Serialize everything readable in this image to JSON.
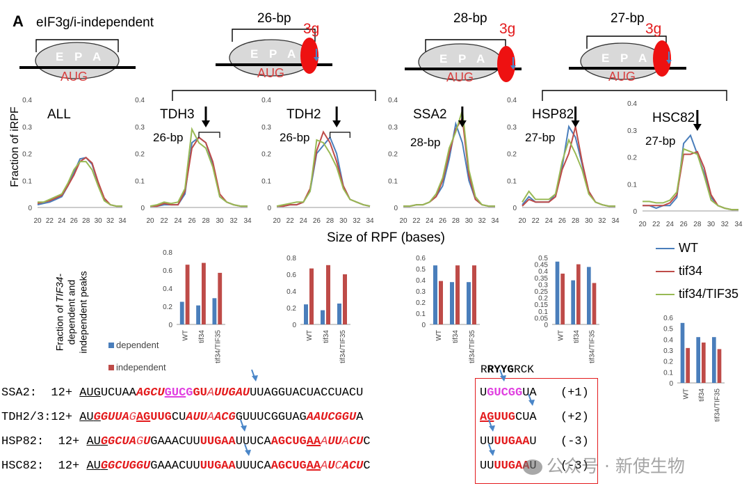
{
  "panel_letter": "A",
  "schematics": [
    {
      "label": "eIF3g/i-independent",
      "sites": [
        "E",
        "P",
        "A"
      ],
      "codon": "AUG",
      "factor": ""
    },
    {
      "label": "26-bp",
      "sites": [
        "E",
        "P",
        "A"
      ],
      "codon": "AUG",
      "factor": "3g"
    },
    {
      "label": "28-bp",
      "sites": [
        "E",
        "P",
        "A"
      ],
      "codon": "AUG",
      "factor": "3g"
    },
    {
      "label": "27-bp",
      "sites": [
        "E",
        "P",
        "A"
      ],
      "codon": "AUG",
      "factor": "3g"
    }
  ],
  "colors": {
    "WT": "#4a7ebb",
    "tif34": "#be4b48",
    "tif34_TIF35": "#98b954",
    "red": "#e31a1c",
    "magenta": "#e040e0",
    "arrow": "#4a86c8"
  },
  "legend": {
    "wt": "WT",
    "tif34": "tif34",
    "tif34_tif35": "tif34/TIF35"
  },
  "xaxis_label": "Size of RPF (bases)",
  "yaxis_label": "Fraction of iRPF",
  "bar_ylabel": {
    "line1": "Fraction of ",
    "line1_italic": "TIF34",
    "line1_end": "-",
    "line2": "dependent and",
    "line3": "independent peaks"
  },
  "bar_legend": {
    "dependent": "dependent",
    "independent": "independent"
  },
  "chart_data": [
    {
      "type": "line",
      "name": "ALL",
      "title": "ALL",
      "x": [
        20,
        21,
        22,
        23,
        24,
        25,
        26,
        27,
        28,
        29,
        30,
        31,
        32,
        33,
        34
      ],
      "ylim": [
        0,
        0.4
      ],
      "yticks": [
        "0",
        "0.1",
        "0.2",
        "0.3",
        "0.4"
      ],
      "xticks": [
        "20",
        "22",
        "24",
        "26",
        "28",
        "30",
        "32",
        "34"
      ],
      "annotation": "",
      "series": [
        {
          "name": "WT",
          "values": [
            0.01,
            0.015,
            0.02,
            0.03,
            0.04,
            0.08,
            0.13,
            0.18,
            0.185,
            0.16,
            0.09,
            0.03,
            0.01,
            0.005,
            0.005
          ]
        },
        {
          "name": "tif34",
          "values": [
            0.015,
            0.02,
            0.025,
            0.035,
            0.045,
            0.08,
            0.12,
            0.17,
            0.185,
            0.165,
            0.095,
            0.035,
            0.01,
            0.005,
            0.005
          ]
        },
        {
          "name": "tif34/TIF35",
          "values": [
            0.02,
            0.02,
            0.03,
            0.04,
            0.05,
            0.09,
            0.14,
            0.17,
            0.17,
            0.14,
            0.08,
            0.025,
            0.01,
            0.005,
            0.005
          ]
        }
      ]
    },
    {
      "type": "line",
      "name": "TDH3",
      "title": "TDH3",
      "x": [
        20,
        21,
        22,
        23,
        24,
        25,
        26,
        27,
        28,
        29,
        30,
        31,
        32,
        33,
        34
      ],
      "ylim": [
        0,
        0.4
      ],
      "yticks": [
        "0",
        "0.1",
        "0.2",
        "0.3",
        "0.4"
      ],
      "xticks": [
        "20",
        "22",
        "24",
        "26",
        "28",
        "30",
        "32",
        "34"
      ],
      "annotation": "26-bp",
      "series": [
        {
          "name": "WT",
          "values": [
            0.005,
            0.005,
            0.01,
            0.01,
            0.01,
            0.05,
            0.24,
            0.26,
            0.24,
            0.16,
            0.04,
            0.02,
            0.01,
            0.005,
            0.005
          ]
        },
        {
          "name": "tif34",
          "values": [
            0.005,
            0.005,
            0.015,
            0.01,
            0.01,
            0.06,
            0.22,
            0.26,
            0.24,
            0.17,
            0.05,
            0.02,
            0.01,
            0.005,
            0.005
          ]
        },
        {
          "name": "tif34/TIF35",
          "values": [
            0.005,
            0.01,
            0.02,
            0.015,
            0.02,
            0.07,
            0.29,
            0.24,
            0.22,
            0.15,
            0.04,
            0.02,
            0.01,
            0.005,
            0.005
          ]
        }
      ]
    },
    {
      "type": "line",
      "name": "TDH2",
      "title": "TDH2",
      "x": [
        20,
        21,
        22,
        23,
        24,
        25,
        26,
        27,
        28,
        29,
        30,
        31,
        32,
        33,
        34
      ],
      "ylim": [
        0,
        0.4
      ],
      "yticks": [
        "0",
        "0.1",
        "0.2",
        "0.3",
        "0.4"
      ],
      "xticks": [
        "20",
        "22",
        "24",
        "26",
        "28",
        "30",
        "32",
        "34"
      ],
      "annotation": "26-bp",
      "series": [
        {
          "name": "WT",
          "values": [
            0.005,
            0.005,
            0.01,
            0.01,
            0.02,
            0.06,
            0.2,
            0.23,
            0.26,
            0.2,
            0.08,
            0.03,
            0.02,
            0.01,
            0.005
          ]
        },
        {
          "name": "tif34",
          "values": [
            0.005,
            0.005,
            0.01,
            0.01,
            0.02,
            0.07,
            0.21,
            0.28,
            0.24,
            0.17,
            0.08,
            0.03,
            0.02,
            0.01,
            0.005
          ]
        },
        {
          "name": "tif34/TIF35",
          "values": [
            0.005,
            0.01,
            0.015,
            0.02,
            0.02,
            0.06,
            0.25,
            0.24,
            0.2,
            0.15,
            0.07,
            0.03,
            0.02,
            0.01,
            0.005
          ]
        }
      ]
    },
    {
      "type": "line",
      "name": "SSA2",
      "title": "SSA2",
      "x": [
        20,
        21,
        22,
        23,
        24,
        25,
        26,
        27,
        28,
        29,
        30,
        31,
        32,
        33,
        34
      ],
      "ylim": [
        0,
        0.4
      ],
      "yticks": [
        "0",
        "0.1",
        "0.2",
        "0.3",
        "0.4"
      ],
      "xticks": [
        "20",
        "22",
        "24",
        "26",
        "28",
        "30",
        "32",
        "34"
      ],
      "annotation": "28-bp",
      "series": [
        {
          "name": "WT",
          "values": [
            0.005,
            0.005,
            0.01,
            0.01,
            0.02,
            0.04,
            0.08,
            0.18,
            0.31,
            0.24,
            0.1,
            0.03,
            0.01,
            0.005,
            0.005
          ]
        },
        {
          "name": "tif34",
          "values": [
            0.005,
            0.005,
            0.01,
            0.01,
            0.02,
            0.04,
            0.1,
            0.2,
            0.29,
            0.33,
            0.12,
            0.03,
            0.01,
            0.005,
            0.005
          ]
        },
        {
          "name": "tif34/TIF35",
          "values": [
            0.005,
            0.005,
            0.01,
            0.01,
            0.02,
            0.05,
            0.11,
            0.22,
            0.28,
            0.36,
            0.14,
            0.04,
            0.01,
            0.005,
            0.005
          ]
        }
      ]
    },
    {
      "type": "line",
      "name": "HSP82",
      "title": "HSP82",
      "x": [
        20,
        21,
        22,
        23,
        24,
        25,
        26,
        27,
        28,
        29,
        30,
        31,
        32,
        33,
        34
      ],
      "ylim": [
        0,
        0.4
      ],
      "yticks": [
        "0",
        "0.1",
        "0.2",
        "0.3",
        "0.4"
      ],
      "xticks": [
        "20",
        "22",
        "24",
        "26",
        "28",
        "30",
        "32",
        "34"
      ],
      "annotation": "27-bp",
      "series": [
        {
          "name": "WT",
          "values": [
            0.01,
            0.04,
            0.02,
            0.02,
            0.02,
            0.05,
            0.15,
            0.3,
            0.26,
            0.16,
            0.06,
            0.02,
            0.01,
            0.005,
            0.005
          ]
        },
        {
          "name": "tif34",
          "values": [
            0.005,
            0.03,
            0.02,
            0.02,
            0.02,
            0.04,
            0.14,
            0.2,
            0.3,
            0.17,
            0.06,
            0.02,
            0.01,
            0.005,
            0.005
          ]
        },
        {
          "name": "tif34/TIF35",
          "values": [
            0.02,
            0.06,
            0.03,
            0.03,
            0.03,
            0.05,
            0.17,
            0.25,
            0.2,
            0.14,
            0.05,
            0.02,
            0.01,
            0.005,
            0.005
          ]
        }
      ]
    },
    {
      "type": "line",
      "name": "HSC82",
      "title": "HSC82",
      "x": [
        20,
        21,
        22,
        23,
        24,
        25,
        26,
        27,
        28,
        29,
        30,
        31,
        32,
        33,
        34
      ],
      "ylim": [
        0,
        0.4
      ],
      "yticks": [
        "0",
        "0.1",
        "0.2",
        "0.3",
        "0.4"
      ],
      "xticks": [
        "20",
        "22",
        "24",
        "26",
        "28",
        "30",
        "32",
        "34"
      ],
      "annotation": "27-bp",
      "series": [
        {
          "name": "WT",
          "values": [
            0.02,
            0.02,
            0.01,
            0.02,
            0.02,
            0.05,
            0.25,
            0.28,
            0.21,
            0.14,
            0.05,
            0.02,
            0.01,
            0.005,
            0.005
          ]
        },
        {
          "name": "tif34",
          "values": [
            0.02,
            0.02,
            0.02,
            0.02,
            0.03,
            0.06,
            0.21,
            0.21,
            0.22,
            0.16,
            0.06,
            0.02,
            0.01,
            0.005,
            0.005
          ]
        },
        {
          "name": "tif34/TIF35",
          "values": [
            0.035,
            0.035,
            0.03,
            0.03,
            0.04,
            0.07,
            0.23,
            0.22,
            0.21,
            0.13,
            0.04,
            0.02,
            0.01,
            0.005,
            0.005
          ]
        }
      ]
    },
    {
      "type": "bar",
      "name": "TDH3-bars",
      "categories": [
        "WT",
        "tif34",
        "tif34/TIF35"
      ],
      "ylim": [
        0,
        0.8
      ],
      "yticks": [
        "0",
        "0.2",
        "0.4",
        "0.6",
        "0.8"
      ],
      "series": [
        {
          "name": "dependent",
          "values": [
            0.25,
            0.21,
            0.29
          ]
        },
        {
          "name": "independent",
          "values": [
            0.66,
            0.68,
            0.57
          ]
        }
      ]
    },
    {
      "type": "bar",
      "name": "TDH2-bars",
      "categories": [
        "WT",
        "tif34",
        "tif34/TIF35"
      ],
      "ylim": [
        0,
        0.8
      ],
      "yticks": [
        "0",
        "0.2",
        "0.4",
        "0.6",
        "0.8"
      ],
      "series": [
        {
          "name": "dependent",
          "values": [
            0.24,
            0.17,
            0.25
          ]
        },
        {
          "name": "independent",
          "values": [
            0.67,
            0.71,
            0.6
          ]
        }
      ]
    },
    {
      "type": "bar",
      "name": "SSA2-bars",
      "categories": [
        "WT",
        "tif34",
        "tif34/TIF35"
      ],
      "ylim": [
        0,
        0.6
      ],
      "yticks": [
        "0",
        "0.1",
        "0.2",
        "0.3",
        "0.4",
        "0.5",
        "0.6"
      ],
      "series": [
        {
          "name": "dependent",
          "values": [
            0.53,
            0.38,
            0.38
          ]
        },
        {
          "name": "independent",
          "values": [
            0.39,
            0.53,
            0.53
          ]
        }
      ]
    },
    {
      "type": "bar",
      "name": "HSP82-bars",
      "categories": [
        "WT",
        "tif34",
        "tif34/TIF35"
      ],
      "ylim": [
        0,
        0.5
      ],
      "yticks": [
        "0",
        "0.05",
        "0.1",
        "0.15",
        "0.2",
        "0.25",
        "0.3",
        "0.35",
        "0.4",
        "0.45",
        "0.5"
      ],
      "series": [
        {
          "name": "dependent",
          "values": [
            0.47,
            0.33,
            0.43
          ]
        },
        {
          "name": "independent",
          "values": [
            0.38,
            0.45,
            0.31
          ]
        }
      ]
    },
    {
      "type": "bar",
      "name": "HSC82-bars",
      "categories": [
        "WT",
        "tif34",
        "tif34/TIF35"
      ],
      "ylim": [
        0,
        0.6
      ],
      "yticks": [
        "0",
        "0.1",
        "0.2",
        "0.3",
        "0.4",
        "0.5",
        "0.6"
      ],
      "series": [
        {
          "name": "dependent",
          "values": [
            0.55,
            0.42,
            0.42
          ]
        },
        {
          "name": "independent",
          "values": [
            0.32,
            0.37,
            0.31
          ]
        }
      ]
    }
  ],
  "motif_header": {
    "p1": "R",
    "p2": "RYYG",
    "p3": "RCK"
  },
  "sequences": [
    {
      "gene": "SSA2:",
      "count": "12+"
    },
    {
      "gene": "TDH2/3:",
      "count": "12+"
    },
    {
      "gene": "HSP82:",
      "count": "12+"
    },
    {
      "gene": "HSC82:",
      "count": "12+"
    }
  ],
  "offsets": [
    "(+1)",
    "(+2)",
    "(-3)",
    "(-3)"
  ],
  "watermark": "公众号 · 新使生物"
}
